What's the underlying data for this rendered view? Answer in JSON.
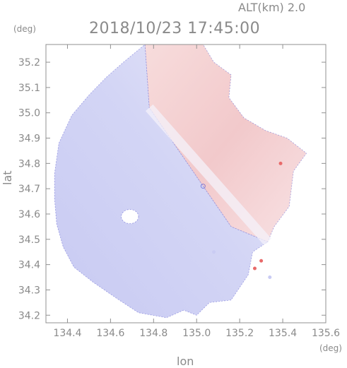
{
  "chart_data": {
    "type": "heatmap",
    "subtype": "radar-doppler-velocity-ppi",
    "title": "2018/10/23 17:45:00",
    "altitude_label": "ALT(km) 2.0",
    "xlabel": "lon",
    "ylabel": "lat",
    "x_unit": "(deg)",
    "y_unit": "(deg)",
    "xlim": [
      134.3,
      135.6
    ],
    "ylim": [
      34.17,
      35.27
    ],
    "x_ticks": [
      134.4,
      134.6,
      134.8,
      135.0,
      135.2,
      135.4,
      135.6
    ],
    "x_tick_labels": [
      "134.4",
      "134.6",
      "134.8",
      "135.0",
      "135.2",
      "135.4",
      "135.6"
    ],
    "y_ticks": [
      34.2,
      34.3,
      34.4,
      34.5,
      34.6,
      34.7,
      34.8,
      34.9,
      35.0,
      35.1,
      35.2
    ],
    "y_tick_labels": [
      "34.2",
      "34.3",
      "34.4",
      "34.5",
      "34.6",
      "34.7",
      "34.8",
      "34.9",
      "35.0",
      "35.1",
      "35.2"
    ],
    "grid": false,
    "colorbar": false,
    "radar_center": {
      "lon": 135.03,
      "lat": 34.71
    },
    "scan_radius_deg": 0.58,
    "colors": {
      "receding_red": "#f6d7d7",
      "receding_red_strong": "#f1c6c8",
      "approaching_blue": "#d7d9f6",
      "approaching_blue_strong": "#c9cbf3",
      "neutral": "#f4f2fa",
      "axis": "#909090",
      "text": "#8a8a8a",
      "echo_edge": "#5b5bd0",
      "isolated_echo": "#e86a6a"
    },
    "echo_regions": [
      {
        "name": "north-receding-echo",
        "sign": "receding",
        "color_key": "receding_red",
        "polygon": [
          [
            134.76,
            35.27
          ],
          [
            135.03,
            35.27
          ],
          [
            135.08,
            35.2
          ],
          [
            135.16,
            35.15
          ],
          [
            135.15,
            35.06
          ],
          [
            135.22,
            34.98
          ],
          [
            135.32,
            34.93
          ],
          [
            135.42,
            34.9
          ],
          [
            135.51,
            34.84
          ],
          [
            135.45,
            34.77
          ],
          [
            135.43,
            34.63
          ],
          [
            135.36,
            34.55
          ],
          [
            135.33,
            34.49
          ],
          [
            135.16,
            34.55
          ],
          [
            135.03,
            34.71
          ],
          [
            134.78,
            35.02
          ]
        ]
      },
      {
        "name": "south-approaching-echo",
        "sign": "approaching",
        "color_key": "approaching_blue",
        "polygon": [
          [
            134.76,
            35.27
          ],
          [
            134.78,
            35.02
          ],
          [
            135.03,
            34.71
          ],
          [
            135.16,
            34.55
          ],
          [
            135.33,
            34.49
          ],
          [
            135.26,
            34.45
          ],
          [
            135.24,
            34.36
          ],
          [
            135.16,
            34.26
          ],
          [
            135.06,
            34.25
          ],
          [
            135.0,
            34.2
          ],
          [
            134.94,
            34.22
          ],
          [
            134.86,
            34.19
          ],
          [
            134.73,
            34.21
          ],
          [
            134.64,
            34.26
          ],
          [
            134.52,
            34.33
          ],
          [
            134.43,
            34.39
          ],
          [
            134.38,
            34.47
          ],
          [
            134.35,
            34.56
          ],
          [
            134.34,
            34.66
          ],
          [
            134.34,
            34.76
          ],
          [
            134.36,
            34.88
          ],
          [
            134.42,
            34.99
          ],
          [
            134.5,
            35.07
          ],
          [
            134.58,
            35.14
          ],
          [
            134.66,
            35.2
          ]
        ]
      }
    ],
    "data_gaps": [
      {
        "name": "clear-air-hole",
        "center": [
          134.69,
          34.59
        ],
        "radius": [
          0.04,
          0.028
        ]
      }
    ],
    "isolated_echoes": [
      {
        "lon": 135.3,
        "lat": 34.415,
        "sign": "receding"
      },
      {
        "lon": 135.27,
        "lat": 34.385,
        "sign": "receding"
      },
      {
        "lon": 135.34,
        "lat": 34.35,
        "sign": "approaching"
      },
      {
        "lon": 135.08,
        "lat": 34.45,
        "sign": "approaching"
      },
      {
        "lon": 135.39,
        "lat": 34.8,
        "sign": "receding"
      }
    ]
  }
}
